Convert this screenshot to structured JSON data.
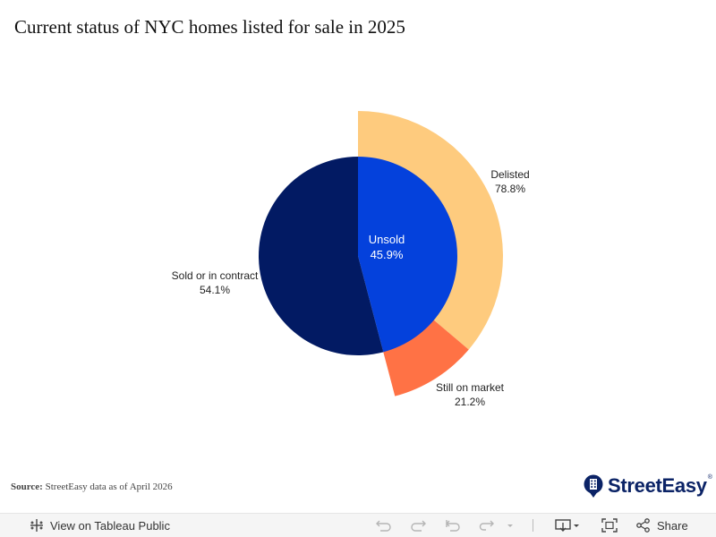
{
  "chart_data": {
    "type": "pie",
    "title": "Current status of NYC homes listed for sale in 2025",
    "inner": [
      {
        "label": "Unsold",
        "value": 45.9,
        "value_label": "45.9%",
        "color": "#0441dc"
      },
      {
        "label": "Sold or in contract",
        "value": 54.1,
        "value_label": "54.1%",
        "color": "#021a63"
      }
    ],
    "outer": [
      {
        "label": "Delisted",
        "value": 78.8,
        "value_label": "78.8%",
        "color": "#fecb7e"
      },
      {
        "label": "Still on market",
        "value": 21.2,
        "value_label": "21.2%",
        "color": "#ff7245"
      }
    ]
  },
  "source": {
    "label": "Source:",
    "text": "StreetEasy data as of April 2026"
  },
  "logo": {
    "text": "StreetEasy",
    "tm": "®"
  },
  "toolbar": {
    "view_label": "View on Tableau Public",
    "share_label": "Share"
  }
}
